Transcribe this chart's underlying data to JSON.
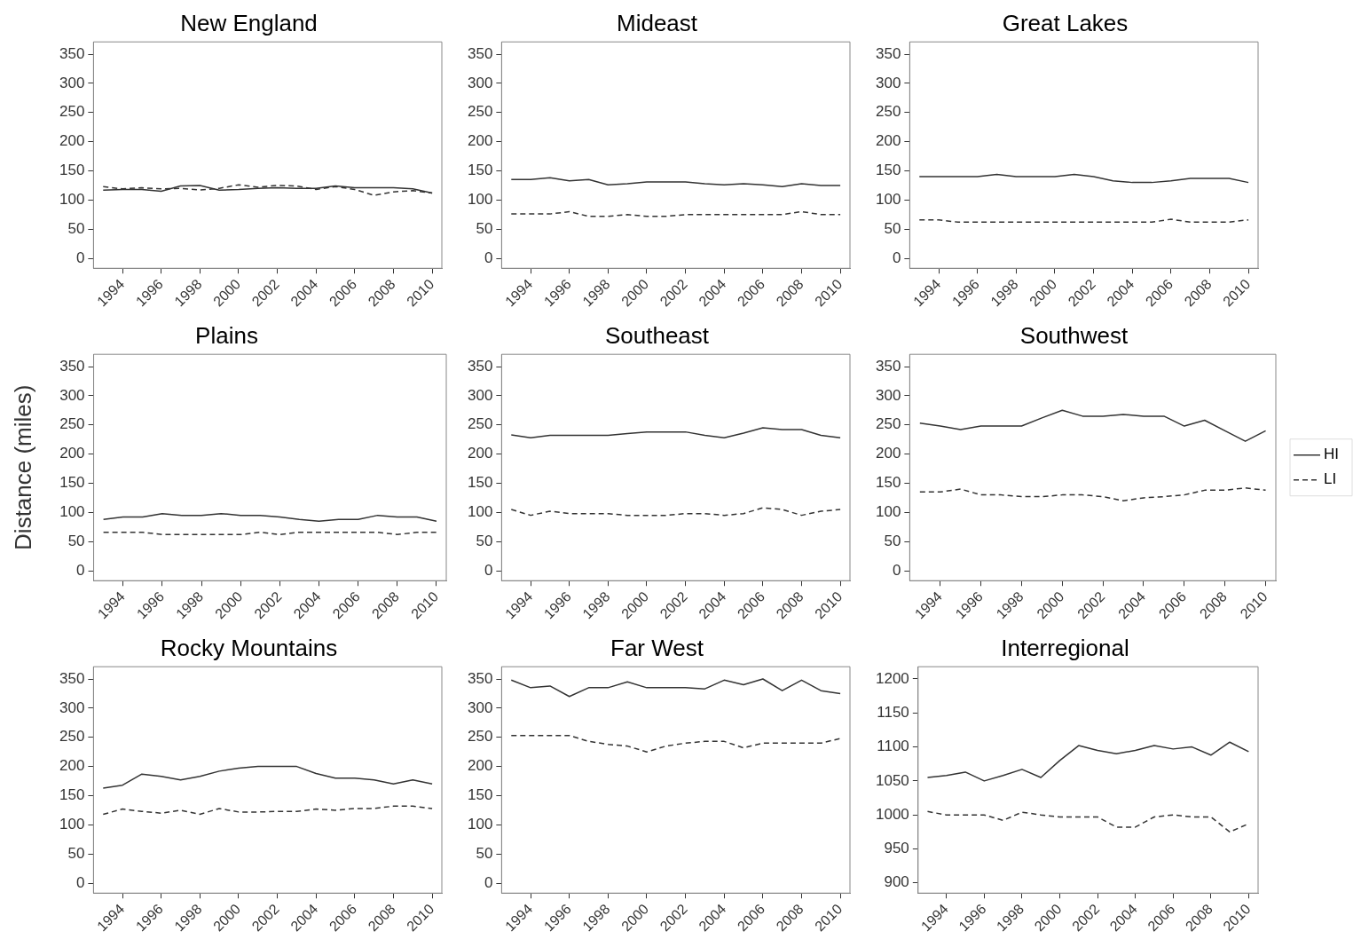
{
  "chart_data": [
    {
      "type": "line",
      "title": "New England",
      "x": [
        1993,
        1994,
        1995,
        1996,
        1997,
        1998,
        1999,
        2000,
        2001,
        2002,
        2003,
        2004,
        2005,
        2006,
        2007,
        2008,
        2009,
        2010
      ],
      "xlim": [
        1992.5,
        2010.5
      ],
      "xticks": [
        1994,
        1996,
        1998,
        2000,
        2002,
        2004,
        2006,
        2008,
        2010
      ],
      "ylim": [
        -17,
        371
      ],
      "yticks": [
        0,
        50,
        100,
        150,
        200,
        250,
        300,
        350
      ],
      "grid": false,
      "legend": false,
      "series": [
        {
          "color": "#333333",
          "line_style": "solid",
          "values": [
            117,
            118,
            118,
            115,
            124,
            125,
            117,
            118,
            120,
            121,
            120,
            120,
            124,
            121,
            121,
            121,
            119,
            112
          ]
        },
        {
          "color": "#333333",
          "line_style": "dashed",
          "values": [
            123,
            119,
            121,
            119,
            120,
            117,
            120,
            126,
            122,
            125,
            124,
            118,
            123,
            118,
            108,
            114,
            116,
            112
          ]
        }
      ]
    },
    {
      "type": "line",
      "title": "Mideast",
      "x": [
        1993,
        1994,
        1995,
        1996,
        1997,
        1998,
        1999,
        2000,
        2001,
        2002,
        2003,
        2004,
        2005,
        2006,
        2007,
        2008,
        2009,
        2010
      ],
      "xlim": [
        1992.5,
        2010.5
      ],
      "xticks": [
        1994,
        1996,
        1998,
        2000,
        2002,
        2004,
        2006,
        2008,
        2010
      ],
      "ylim": [
        -17,
        371
      ],
      "yticks": [
        0,
        50,
        100,
        150,
        200,
        250,
        300,
        350
      ],
      "grid": false,
      "legend": false,
      "series": [
        {
          "color": "#333333",
          "line_style": "solid",
          "values": [
            135,
            135,
            138,
            133,
            135,
            126,
            128,
            131,
            131,
            131,
            128,
            126,
            128,
            126,
            123,
            128,
            125,
            125
          ]
        },
        {
          "color": "#333333",
          "line_style": "dashed",
          "values": [
            76,
            76,
            76,
            80,
            72,
            72,
            75,
            72,
            72,
            75,
            75,
            75,
            75,
            75,
            75,
            80,
            75,
            75
          ]
        }
      ]
    },
    {
      "type": "line",
      "title": "Great Lakes",
      "x": [
        1993,
        1994,
        1995,
        1996,
        1997,
        1998,
        1999,
        2000,
        2001,
        2002,
        2003,
        2004,
        2005,
        2006,
        2007,
        2008,
        2009,
        2010
      ],
      "xlim": [
        1992.5,
        2010.5
      ],
      "xticks": [
        1994,
        1996,
        1998,
        2000,
        2002,
        2004,
        2006,
        2008,
        2010
      ],
      "ylim": [
        -17,
        371
      ],
      "yticks": [
        0,
        50,
        100,
        150,
        200,
        250,
        300,
        350
      ],
      "grid": false,
      "legend": false,
      "series": [
        {
          "color": "#333333",
          "line_style": "solid",
          "values": [
            140,
            140,
            140,
            140,
            144,
            140,
            140,
            140,
            144,
            140,
            133,
            130,
            130,
            133,
            137,
            137,
            137,
            130
          ]
        },
        {
          "color": "#333333",
          "line_style": "dashed",
          "values": [
            66,
            66,
            62,
            62,
            62,
            62,
            62,
            62,
            62,
            62,
            62,
            62,
            62,
            67,
            62,
            62,
            62,
            66
          ]
        }
      ]
    },
    {
      "type": "line",
      "title": "Plains",
      "ylabel": "Distance (miles)",
      "x": [
        1993,
        1994,
        1995,
        1996,
        1997,
        1998,
        1999,
        2000,
        2001,
        2002,
        2003,
        2004,
        2005,
        2006,
        2007,
        2008,
        2009,
        2010
      ],
      "xlim": [
        1992.5,
        2010.5
      ],
      "xticks": [
        1994,
        1996,
        1998,
        2000,
        2002,
        2004,
        2006,
        2008,
        2010
      ],
      "ylim": [
        -17,
        371
      ],
      "yticks": [
        0,
        50,
        100,
        150,
        200,
        250,
        300,
        350
      ],
      "grid": false,
      "legend": false,
      "series": [
        {
          "color": "#333333",
          "line_style": "solid",
          "values": [
            88,
            92,
            92,
            98,
            95,
            95,
            98,
            95,
            95,
            92,
            88,
            85,
            88,
            88,
            95,
            92,
            92,
            85
          ]
        },
        {
          "color": "#333333",
          "line_style": "dashed",
          "values": [
            66,
            66,
            66,
            62,
            62,
            62,
            62,
            62,
            66,
            62,
            66,
            66,
            66,
            66,
            66,
            62,
            66,
            66
          ]
        }
      ]
    },
    {
      "type": "line",
      "title": "Southeast",
      "x": [
        1993,
        1994,
        1995,
        1996,
        1997,
        1998,
        1999,
        2000,
        2001,
        2002,
        2003,
        2004,
        2005,
        2006,
        2007,
        2008,
        2009,
        2010
      ],
      "xlim": [
        1992.5,
        2010.5
      ],
      "xticks": [
        1994,
        1996,
        1998,
        2000,
        2002,
        2004,
        2006,
        2008,
        2010
      ],
      "ylim": [
        -17,
        371
      ],
      "yticks": [
        0,
        50,
        100,
        150,
        200,
        250,
        300,
        350
      ],
      "grid": false,
      "legend": false,
      "series": [
        {
          "color": "#333333",
          "line_style": "solid",
          "values": [
            233,
            228,
            232,
            232,
            232,
            232,
            235,
            238,
            238,
            238,
            232,
            228,
            236,
            245,
            242,
            242,
            232,
            228
          ]
        },
        {
          "color": "#333333",
          "line_style": "dashed",
          "values": [
            105,
            95,
            102,
            98,
            98,
            98,
            95,
            95,
            95,
            98,
            98,
            95,
            98,
            108,
            105,
            95,
            102,
            105
          ]
        }
      ]
    },
    {
      "type": "line",
      "title": "Southwest",
      "x": [
        1993,
        1994,
        1995,
        1996,
        1997,
        1998,
        1999,
        2000,
        2001,
        2002,
        2003,
        2004,
        2005,
        2006,
        2007,
        2008,
        2009,
        2010
      ],
      "xlim": [
        1992.5,
        2010.5
      ],
      "xticks": [
        1994,
        1996,
        1998,
        2000,
        2002,
        2004,
        2006,
        2008,
        2010
      ],
      "ylim": [
        -17,
        371
      ],
      "yticks": [
        0,
        50,
        100,
        150,
        200,
        250,
        300,
        350
      ],
      "grid": false,
      "legend": "right",
      "series": [
        {
          "name": "HI",
          "color": "#333333",
          "line_style": "solid",
          "values": [
            253,
            248,
            242,
            248,
            248,
            248,
            262,
            275,
            265,
            265,
            268,
            265,
            265,
            248,
            258,
            240,
            222,
            240
          ]
        },
        {
          "name": "LI",
          "color": "#333333",
          "line_style": "dashed",
          "values": [
            135,
            135,
            140,
            130,
            130,
            127,
            127,
            130,
            130,
            127,
            120,
            125,
            127,
            130,
            138,
            138,
            142,
            138
          ]
        }
      ]
    },
    {
      "type": "line",
      "title": "Rocky Mountains",
      "x": [
        1993,
        1994,
        1995,
        1996,
        1997,
        1998,
        1999,
        2000,
        2001,
        2002,
        2003,
        2004,
        2005,
        2006,
        2007,
        2008,
        2009,
        2010
      ],
      "xlim": [
        1992.5,
        2010.5
      ],
      "xticks": [
        1994,
        1996,
        1998,
        2000,
        2002,
        2004,
        2006,
        2008,
        2010
      ],
      "ylim": [
        -17,
        371
      ],
      "yticks": [
        0,
        50,
        100,
        150,
        200,
        250,
        300,
        350
      ],
      "grid": false,
      "legend": false,
      "series": [
        {
          "color": "#333333",
          "line_style": "solid",
          "values": [
            163,
            168,
            187,
            183,
            177,
            183,
            192,
            197,
            200,
            200,
            200,
            188,
            180,
            180,
            177,
            170,
            177,
            170
          ]
        },
        {
          "color": "#333333",
          "line_style": "dashed",
          "values": [
            118,
            127,
            123,
            120,
            125,
            118,
            128,
            122,
            122,
            123,
            123,
            127,
            125,
            128,
            128,
            132,
            132,
            128
          ]
        }
      ]
    },
    {
      "type": "line",
      "title": "Far West",
      "x": [
        1993,
        1994,
        1995,
        1996,
        1997,
        1998,
        1999,
        2000,
        2001,
        2002,
        2003,
        2004,
        2005,
        2006,
        2007,
        2008,
        2009,
        2010
      ],
      "xlim": [
        1992.5,
        2010.5
      ],
      "xticks": [
        1994,
        1996,
        1998,
        2000,
        2002,
        2004,
        2006,
        2008,
        2010
      ],
      "ylim": [
        -17,
        371
      ],
      "yticks": [
        0,
        50,
        100,
        150,
        200,
        250,
        300,
        350
      ],
      "grid": false,
      "legend": false,
      "series": [
        {
          "color": "#333333",
          "line_style": "solid",
          "values": [
            348,
            335,
            338,
            320,
            335,
            335,
            345,
            335,
            335,
            335,
            333,
            348,
            340,
            350,
            330,
            348,
            330,
            325
          ]
        },
        {
          "color": "#333333",
          "line_style": "dashed",
          "values": [
            253,
            253,
            253,
            253,
            243,
            238,
            235,
            225,
            235,
            240,
            243,
            243,
            232,
            240,
            240,
            240,
            240,
            248
          ]
        }
      ]
    },
    {
      "type": "line",
      "title": "Interregional",
      "x": [
        1993,
        1994,
        1995,
        1996,
        1997,
        1998,
        1999,
        2000,
        2001,
        2002,
        2003,
        2004,
        2005,
        2006,
        2007,
        2008,
        2009,
        2010
      ],
      "xlim": [
        1992.5,
        2010.5
      ],
      "xticks": [
        1994,
        1996,
        1998,
        2000,
        2002,
        2004,
        2006,
        2008,
        2010
      ],
      "ylim": [
        885,
        1218
      ],
      "yticks": [
        900,
        950,
        1000,
        1050,
        1100,
        1150,
        1200
      ],
      "grid": false,
      "legend": false,
      "series": [
        {
          "color": "#333333",
          "line_style": "solid",
          "values": [
            1055,
            1058,
            1063,
            1050,
            1058,
            1067,
            1055,
            1080,
            1102,
            1095,
            1090,
            1095,
            1102,
            1097,
            1100,
            1088,
            1107,
            1093
          ]
        },
        {
          "color": "#333333",
          "line_style": "dashed",
          "values": [
            1005,
            1000,
            1000,
            1000,
            992,
            1004,
            1000,
            997,
            997,
            997,
            982,
            982,
            997,
            1000,
            997,
            997,
            975,
            987
          ]
        }
      ]
    }
  ]
}
